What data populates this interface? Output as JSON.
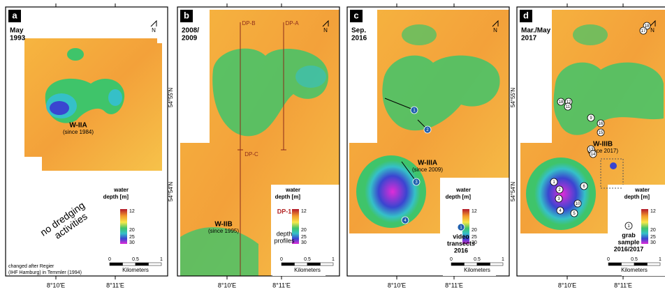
{
  "north": "N",
  "axes": {
    "x_labels": [
      "8°10'E",
      "8°11'E"
    ],
    "y_labels": [
      "54°55'N",
      "54°54'N"
    ]
  },
  "legend": {
    "title": [
      "water",
      "depth [m]"
    ],
    "ticks": [
      "12",
      "20",
      "25",
      "30"
    ]
  },
  "scale": {
    "labels": [
      "0",
      "0.5",
      "1"
    ],
    "unit": "Kilometers"
  },
  "panels": [
    {
      "letter": "a",
      "date": [
        "May",
        "1993"
      ],
      "feature": {
        "name": "W-IIA",
        "since": "(since 1984)"
      },
      "note": [
        "no dredging",
        "activities"
      ],
      "credit": [
        "changed after Regier",
        "(IHF Hamburg) in Temmler (1994)"
      ]
    },
    {
      "letter": "b",
      "date": [
        "2008/",
        "2009"
      ],
      "feature": {
        "name": "W-IIB",
        "since": "(since 1995)"
      },
      "profiles": [
        "DP-B",
        "DP-A",
        "DP-C"
      ],
      "profile_key": {
        "name": "DP-1",
        "text": [
          "depth",
          "profiles"
        ]
      }
    },
    {
      "letter": "c",
      "date": [
        "Sep.",
        "2016"
      ],
      "feature": {
        "name": "W-IIIA",
        "since": "(since 2009)"
      },
      "transects": [
        "1",
        "2",
        "3",
        "4"
      ],
      "transect_key": {
        "name": "1",
        "text": [
          "video",
          "transects",
          "2016"
        ]
      }
    },
    {
      "letter": "d",
      "date": [
        "Mar./May",
        "2017"
      ],
      "feature": {
        "name": "W-IIIB",
        "since": "(since 2017)"
      },
      "samples": [
        "18",
        "17",
        "18",
        "12",
        "11",
        "9",
        "16",
        "15",
        "13",
        "14",
        "6",
        "1",
        "2",
        "3",
        "10",
        "4",
        "5"
      ],
      "sample_key": {
        "name": "1",
        "text": [
          "grab",
          "sample",
          "2016/2017"
        ]
      }
    }
  ]
}
